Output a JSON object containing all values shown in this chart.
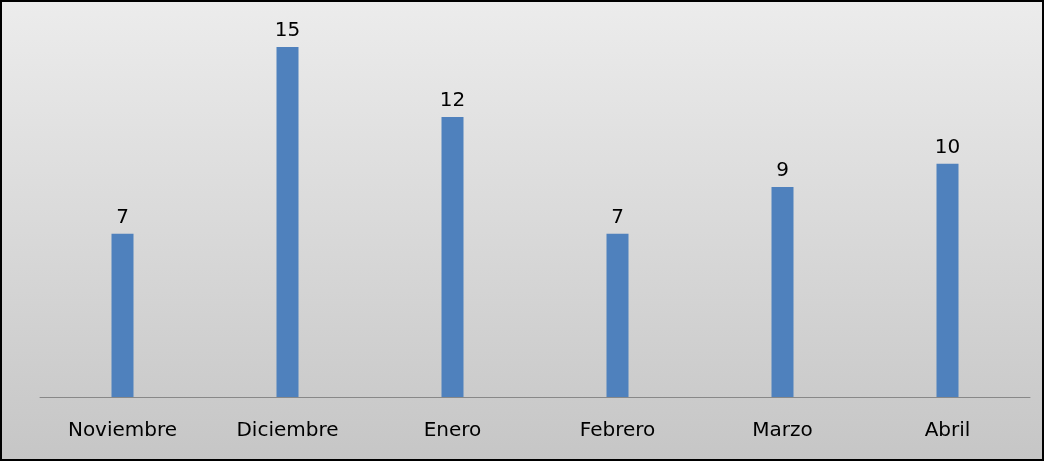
{
  "chart_data": {
    "type": "bar",
    "categories": [
      "Noviembre",
      "Diciembre",
      "Enero",
      "Febrero",
      "Marzo",
      "Abril"
    ],
    "values": [
      7,
      15,
      12,
      7,
      9,
      10
    ],
    "color": "#4f81bd",
    "data_labels": true,
    "grid": false
  }
}
